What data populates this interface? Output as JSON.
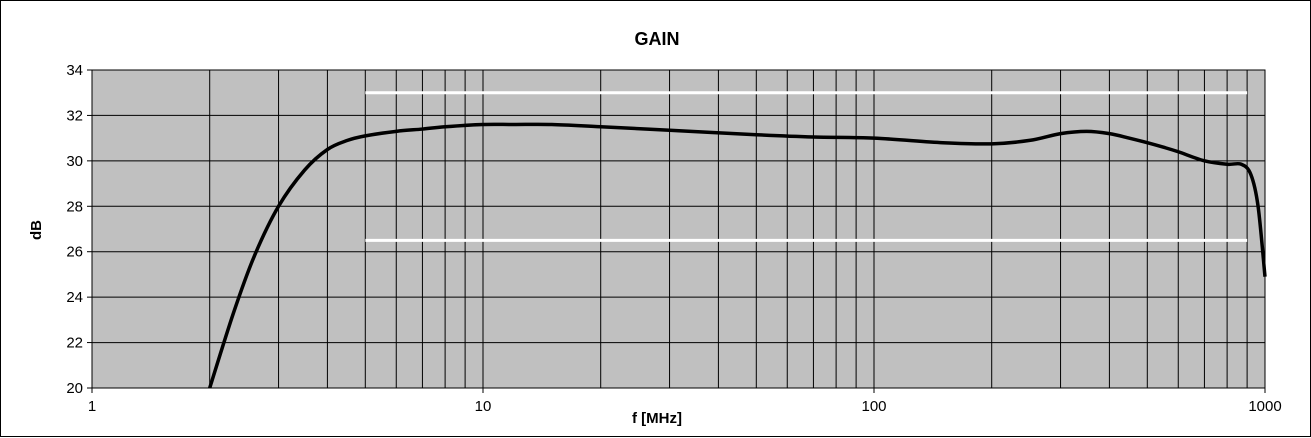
{
  "chart_data": {
    "type": "line",
    "title": "GAIN",
    "xlabel": "f [MHz]",
    "ylabel": "dB",
    "x_scale": "log",
    "xlim": [
      1,
      1000
    ],
    "ylim": [
      20,
      34
    ],
    "x_ticks": [
      1,
      10,
      100,
      1000
    ],
    "x_tick_labels": [
      "1",
      "10",
      "100",
      "1000"
    ],
    "y_ticks": [
      20,
      22,
      24,
      26,
      28,
      30,
      32,
      34
    ],
    "y_tick_labels": [
      "20",
      "22",
      "24",
      "26",
      "28",
      "30",
      "32",
      "34"
    ],
    "grid": true,
    "legend": "none",
    "colors": {
      "plot_background": "#c0c0c0",
      "grid": "#000000",
      "series": "#000000",
      "limits": "#ffffff"
    },
    "series": [
      {
        "x": [
          2,
          2.3,
          2.6,
          3,
          3.5,
          4,
          4.5,
          5,
          6,
          7,
          8,
          10,
          12,
          15,
          20,
          30,
          50,
          70,
          100,
          150,
          200,
          250,
          300,
          350,
          400,
          450,
          500,
          550,
          600,
          700,
          800,
          870,
          920,
          960,
          1000
        ],
        "y": [
          20,
          23.3,
          25.8,
          28.0,
          29.6,
          30.5,
          30.9,
          31.1,
          31.3,
          31.4,
          31.5,
          31.6,
          31.6,
          31.6,
          31.5,
          31.35,
          31.15,
          31.05,
          31.0,
          30.8,
          30.75,
          30.9,
          31.2,
          31.3,
          31.2,
          31.0,
          30.8,
          30.6,
          30.4,
          30.0,
          29.85,
          29.85,
          29.4,
          28.0,
          24.9
        ]
      }
    ],
    "limit_lines": [
      {
        "y": 33,
        "x_range": [
          5,
          900
        ]
      },
      {
        "y": 26.5,
        "x_range": [
          5,
          900
        ]
      }
    ]
  }
}
